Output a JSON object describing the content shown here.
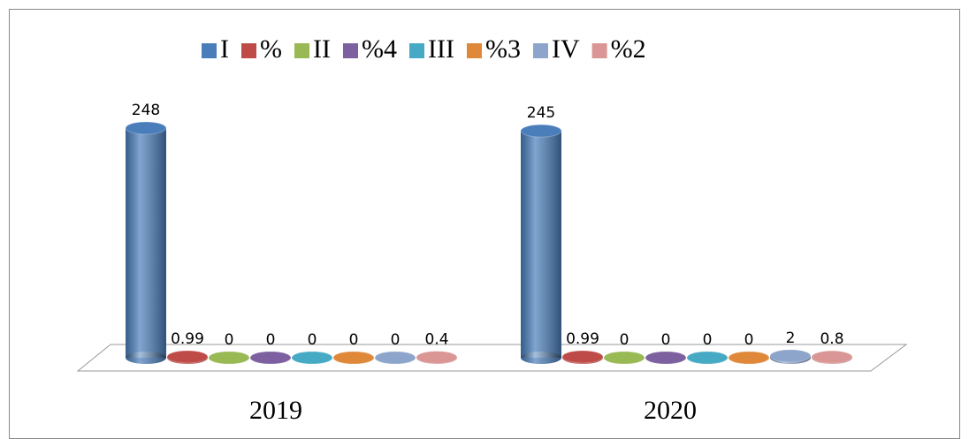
{
  "chart_data": {
    "type": "bar3d",
    "categories": [
      "2019",
      "2020"
    ],
    "series": [
      {
        "name": "I",
        "color": "#4a7ebb",
        "values": [
          248,
          245
        ]
      },
      {
        "name": "%",
        "color": "#be4b48",
        "values": [
          0.99,
          0.99
        ]
      },
      {
        "name": "II",
        "color": "#98b954",
        "values": [
          0,
          0
        ]
      },
      {
        "name": "%4",
        "color": "#7d60a0",
        "values": [
          0,
          0
        ]
      },
      {
        "name": "III",
        "color": "#46aac5",
        "values": [
          0,
          0
        ]
      },
      {
        "name": "%3",
        "color": "#e0883a",
        "values": [
          0,
          0
        ]
      },
      {
        "name": "IV",
        "color": "#8ea5cb",
        "values": [
          0,
          2
        ]
      },
      {
        "name": "%2",
        "color": "#d99694",
        "values": [
          0.4,
          0.8
        ]
      }
    ],
    "legend": "top"
  }
}
